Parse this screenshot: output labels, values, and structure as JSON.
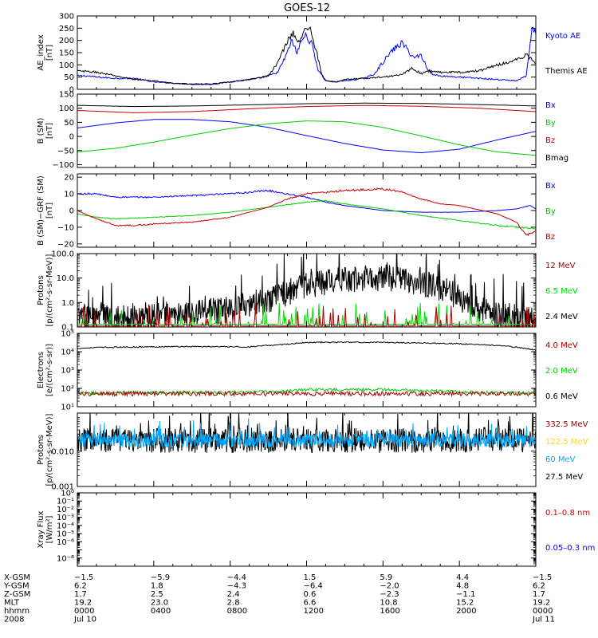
{
  "chart_data": {
    "type": "line",
    "title": "GOES-12",
    "panels": [
      {
        "id": "ae",
        "ylabel": [
          "AE_index",
          "[nT]"
        ],
        "scale": "linear",
        "ylim": [
          0,
          300
        ],
        "ticks": [
          0,
          50,
          100,
          150,
          200,
          250,
          300
        ],
        "tick_labels": [
          "0",
          "50",
          "100",
          "150",
          "200",
          "250",
          "300"
        ],
        "legend": [
          {
            "label": "Kyoto AE",
            "color": "#0000ff"
          },
          {
            "label": "Themis AE",
            "color": "#000000"
          }
        ],
        "series": [
          {
            "name": "Kyoto AE",
            "color": "#0000ff",
            "noise": 0.07,
            "cap": [
              0,
              300
            ],
            "x": [
              0,
              0.5,
              1,
              2,
              3,
              4,
              5,
              6,
              7,
              7.5,
              8,
              8.5,
              9,
              9.5,
              10,
              10.5,
              11,
              11.2,
              11.5,
              11.8,
              12.0,
              12.3,
              12.6,
              13,
              13.5,
              14,
              15,
              15.5,
              16,
              16.5,
              17,
              17.3,
              17.6,
              18,
              18.3,
              18.6,
              19,
              20,
              21,
              22,
              23,
              23.5,
              23.8,
              24
            ],
            "y": [
              55,
              55,
              50,
              45,
              45,
              30,
              25,
              20,
              20,
              25,
              30,
              35,
              40,
              45,
              55,
              70,
              150,
              200,
              150,
              210,
              220,
              180,
              80,
              35,
              30,
              35,
              45,
              60,
              110,
              160,
              190,
              160,
              130,
              140,
              90,
              60,
              55,
              50,
              45,
              40,
              35,
              55,
              240,
              230
            ]
          },
          {
            "name": "Themis AE",
            "color": "#000000",
            "noise": 0.06,
            "cap": [
              0,
              300
            ],
            "x": [
              0,
              1,
              2,
              3,
              4,
              5,
              6,
              7,
              8,
              9,
              10,
              10.5,
              11,
              11.3,
              11.6,
              12.0,
              12.2,
              12.5,
              12.8,
              13,
              13.5,
              14,
              15,
              16,
              17,
              17.5,
              18,
              18.5,
              19,
              20,
              21,
              22,
              23,
              23.5,
              24
            ],
            "y": [
              75,
              70,
              55,
              40,
              35,
              25,
              22,
              22,
              30,
              40,
              55,
              110,
              200,
              230,
              190,
              255,
              245,
              160,
              60,
              35,
              30,
              40,
              45,
              50,
              60,
              85,
              65,
              75,
              70,
              70,
              75,
              100,
              120,
              140,
              110
            ]
          }
        ]
      },
      {
        "id": "bsm",
        "ylabel": [
          "B (SM)",
          "[nT]"
        ],
        "scale": "linear",
        "ylim": [
          -110,
          150
        ],
        "ticks": [
          -100,
          -50,
          0,
          50,
          100,
          150
        ],
        "tick_labels": [
          "−100",
          "−50",
          "0",
          "50",
          "100",
          "150"
        ],
        "legend": [
          {
            "label": "Bx",
            "color": "#0000ff"
          },
          {
            "label": "By",
            "color": "#00cc00"
          },
          {
            "label": "Bz",
            "color": "#cc0000"
          },
          {
            "label": "Bmag",
            "color": "#000000"
          }
        ],
        "series": [
          {
            "name": "Bx",
            "color": "#0000ff",
            "noise": 0,
            "x": [
              0,
              2,
              4,
              6,
              8,
              10,
              12,
              14,
              16,
              18,
              20,
              22,
              24
            ],
            "y": [
              30,
              48,
              60,
              60,
              52,
              32,
              3,
              -25,
              -48,
              -58,
              -45,
              -12,
              18
            ]
          },
          {
            "name": "By",
            "color": "#00cc00",
            "noise": 0,
            "x": [
              0,
              2,
              4,
              6,
              8,
              10,
              12,
              14,
              16,
              18,
              20,
              22,
              24
            ],
            "y": [
              -55,
              -42,
              -20,
              5,
              28,
              45,
              55,
              52,
              32,
              2,
              -30,
              -55,
              -67
            ]
          },
          {
            "name": "Bz",
            "color": "#cc0000",
            "noise": 0,
            "x": [
              0,
              3,
              6,
              9,
              12,
              15,
              18,
              21,
              24
            ],
            "y": [
              92,
              84,
              88,
              98,
              106,
              110,
              107,
              100,
              88
            ]
          },
          {
            "name": "Bmag",
            "color": "#000000",
            "noise": 0,
            "x": [
              0,
              3,
              6,
              9,
              12,
              15,
              18,
              21,
              24
            ],
            "y": [
              110,
              106,
              108,
              112,
              116,
              118,
              117,
              113,
              108
            ]
          }
        ]
      },
      {
        "id": "bdiff",
        "ylabel": [
          "B (SM)−GRF (SM)",
          "[nT]"
        ],
        "scale": "linear",
        "ylim": [
          -22,
          22
        ],
        "ticks": [
          -20,
          -10,
          0,
          10,
          20
        ],
        "tick_labels": [
          "−20",
          "−10",
          "0",
          "10",
          "20"
        ],
        "legend": [
          {
            "label": "Bx",
            "color": "#0000ff"
          },
          {
            "label": "By",
            "color": "#00cc00"
          },
          {
            "label": "Bz",
            "color": "#cc0000"
          }
        ],
        "series": [
          {
            "name": "Bx",
            "color": "#0000ff",
            "noise": 0.05,
            "cap": [
              -22,
              22
            ],
            "x": [
              0,
              1,
              2,
              4,
              6,
              8,
              10,
              11,
              12,
              13,
              14,
              16,
              18,
              20,
              22,
              23,
              23.7,
              24
            ],
            "y": [
              10,
              10,
              8,
              8,
              9,
              10,
              12,
              10,
              8,
              5,
              3,
              0,
              -1,
              -1,
              0,
              1,
              3,
              1
            ]
          },
          {
            "name": "By",
            "color": "#00cc00",
            "noise": 0.05,
            "cap": [
              -22,
              22
            ],
            "x": [
              0,
              1,
              2,
              4,
              6,
              8,
              10,
              12,
              13,
              14,
              16,
              18,
              20,
              22,
              24
            ],
            "y": [
              -2,
              -4,
              -5,
              -4,
              -3,
              -1,
              2,
              5,
              6,
              4,
              1,
              -3,
              -6,
              -9,
              -11
            ]
          },
          {
            "name": "Bz",
            "color": "#cc0000",
            "noise": 0.05,
            "cap": [
              -22,
              22
            ],
            "x": [
              0,
              1,
              2,
              3,
              4,
              6,
              8,
              10,
              11,
              12,
              14,
              16,
              17,
              18,
              19,
              20,
              22,
              23,
              23.5,
              24
            ],
            "y": [
              0,
              -5,
              -9,
              -9,
              -8,
              -7,
              -4,
              2,
              7,
              10,
              12,
              13,
              11,
              7,
              4,
              3,
              -2,
              -7,
              -15,
              -12
            ]
          }
        ]
      },
      {
        "id": "protons_hi",
        "ylabel": [
          "Protons",
          "[p/(cm²-s-sr-MeV)]"
        ],
        "scale": "log",
        "ylim": [
          0.1,
          100
        ],
        "ticks": [
          0.1,
          1,
          10,
          100
        ],
        "tick_labels": [
          "0.1",
          "1.0",
          "10.0",
          "100.0"
        ],
        "legend": [
          {
            "label": "12 MeV",
            "color": "#aa0000"
          },
          {
            "label": "6.5 MeV",
            "color": "#00dd00"
          },
          {
            "label": "2.4 MeV",
            "color": "#000000"
          }
        ],
        "series": [
          {
            "name": "2.4 MeV",
            "color": "#000000",
            "noise": 0.55,
            "spiky": true,
            "x": [
              0,
              2,
              4,
              6,
              8,
              10,
              11,
              12,
              13,
              14,
              15,
              16,
              17,
              18,
              19,
              20,
              21,
              22,
              23,
              24
            ],
            "y": [
              0.25,
              0.25,
              0.3,
              0.35,
              0.5,
              1.2,
              2.5,
              5,
              7,
              8,
              9.5,
              10.5,
              9,
              6,
              3.5,
              1.5,
              0.6,
              0.3,
              0.25,
              0.2
            ]
          },
          {
            "name": "6.5 MeV",
            "color": "#00dd00",
            "noise": 0.6,
            "spiky": true,
            "sparse": true,
            "x": [
              0,
              24
            ],
            "y": [
              0.13,
              0.13
            ]
          },
          {
            "name": "12 MeV",
            "color": "#aa0000",
            "noise": 0.5,
            "spiky": true,
            "sparse": true,
            "x": [
              0,
              24
            ],
            "y": [
              0.11,
              0.11
            ]
          }
        ]
      },
      {
        "id": "electrons",
        "ylabel": [
          "Electrons",
          "[e/(cm²-s-sr)]"
        ],
        "scale": "log",
        "ylim": [
          10,
          100000
        ],
        "ticks": [
          10,
          100,
          1000,
          10000,
          100000
        ],
        "tick_labels": [
          "10¹",
          "10²",
          "10³",
          "10⁴",
          "10⁵"
        ],
        "legend": [
          {
            "label": "4.0 MeV",
            "color": "#aa0000"
          },
          {
            "label": "2.0 MeV",
            "color": "#00cc00"
          },
          {
            "label": "0.6 MeV",
            "color": "#000000"
          }
        ],
        "series": [
          {
            "name": "0.6 MeV",
            "color": "#000000",
            "noise": 0.03,
            "x": [
              0,
              1,
              3,
              5,
              7,
              9,
              11,
              12,
              14,
              16,
              18,
              20,
              22,
              23.5,
              24
            ],
            "y": [
              15000,
              17000,
              18000,
              19000,
              19000,
              18000,
              26000,
              32000,
              33000,
              32000,
              30000,
              27000,
              22000,
              15000,
              12000
            ]
          },
          {
            "name": "2.0 MeV",
            "color": "#00cc00",
            "noise": 0.08,
            "x": [
              0,
              4,
              8,
              11,
              12,
              14,
              16,
              18,
              20,
              24
            ],
            "y": [
              55,
              60,
              60,
              70,
              85,
              85,
              85,
              75,
              65,
              55
            ]
          },
          {
            "name": "4.0 MeV",
            "color": "#aa0000",
            "noise": 0.12,
            "x": [
              0,
              24
            ],
            "y": [
              52,
              52
            ]
          }
        ]
      },
      {
        "id": "protons_lo",
        "ylabel": [
          "Protons",
          "[p/(cm²-s-sr-MeV)]"
        ],
        "scale": "log",
        "ylim": [
          0.001,
          0.12
        ],
        "ticks": [
          0.001,
          0.01
        ],
        "tick_labels": [
          "0.001",
          "0.010"
        ],
        "legend": [
          {
            "label": "332.5 MeV",
            "color": "#aa0000"
          },
          {
            "label": "122.5 MeV",
            "color": "#ffd700"
          },
          {
            "label": "60 MeV",
            "color": "#00aaff"
          },
          {
            "label": "27.5 MeV",
            "color": "#000000"
          }
        ],
        "series": [
          {
            "name": "27.5 MeV",
            "color": "#000000",
            "noise": 0.35,
            "spiky": true,
            "x": [
              0,
              24
            ],
            "y": [
              0.02,
              0.02
            ]
          },
          {
            "name": "60 MeV",
            "color": "#00aaff",
            "noise": 0.2,
            "spiky": true,
            "x": [
              0,
              24
            ],
            "y": [
              0.02,
              0.02
            ]
          }
        ]
      },
      {
        "id": "xray",
        "ylabel": [
          "Xray Flux",
          "[W/m²]"
        ],
        "scale": "log",
        "ylim": [
          1e-09,
          1
        ],
        "ticks": [
          1e-09,
          1e-08,
          1e-07,
          1e-06,
          1e-05,
          0.0001,
          0.001,
          0.01,
          0.1,
          1
        ],
        "tick_labels": [
          "",
          "10⁻⁸",
          "",
          "10⁻⁶",
          "10⁻⁵",
          "10⁻⁴",
          "10⁻³",
          "10⁻²",
          "10⁻¹",
          "10⁰"
        ],
        "legend": [
          {
            "label": "0.1–0.8 nm",
            "color": "#cc0000"
          },
          {
            "label": "0.05–0.3 nm",
            "color": "#0000ff"
          }
        ],
        "series": []
      }
    ],
    "xlim": [
      0,
      24
    ],
    "x_ticks": [
      0,
      4,
      8,
      12,
      16,
      20,
      24
    ],
    "ephemeris": {
      "rows": [
        {
          "label": "X-GSM",
          "values": [
            "−1.5",
            "−5.9",
            "−4.4",
            "1.5",
            "5.9",
            "4.4",
            "−1.5"
          ]
        },
        {
          "label": "Y-GSM",
          "values": [
            "6.2",
            "1.8",
            "−4.3",
            "−6.4",
            "−2.0",
            "4.8",
            "6.2"
          ]
        },
        {
          "label": "Z-GSM",
          "values": [
            "1.7",
            "2.5",
            "2.4",
            "0.6",
            "−2.3",
            "−1.1",
            "1.7"
          ]
        },
        {
          "label": "MLT",
          "values": [
            "19.2",
            "23.0",
            "2.8",
            "6.6",
            "10.8",
            "15.2",
            "19.2"
          ]
        },
        {
          "label": "hhmm",
          "values": [
            "0000",
            "0400",
            "0800",
            "1200",
            "1600",
            "2000",
            "0000"
          ]
        },
        {
          "label": "2008",
          "values": [
            "Jul 10",
            "",
            "",
            "",
            "",
            "",
            "Jul 11"
          ]
        }
      ]
    }
  }
}
